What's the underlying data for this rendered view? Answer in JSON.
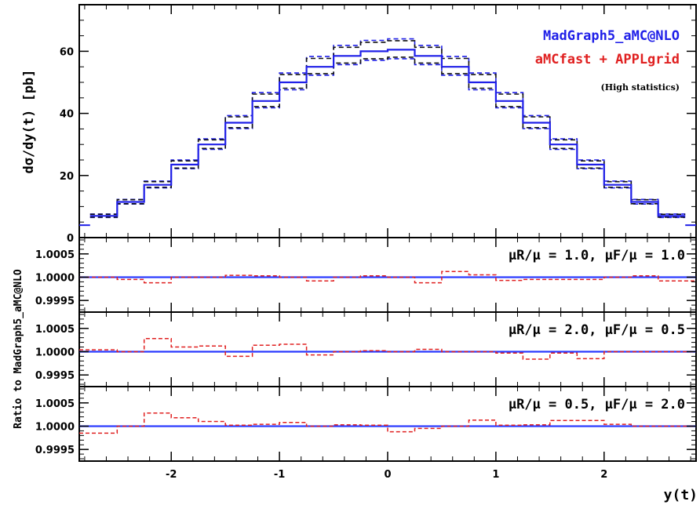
{
  "chart_data": [
    {
      "type": "line",
      "panel": "main",
      "xlabel": "y(t)",
      "ylabel": "dσ/dy(t) [pb]",
      "xlim": [
        -2.85,
        2.85
      ],
      "ylim": [
        0,
        75
      ],
      "x_ticks": [
        "-2",
        "-1",
        "0",
        "1",
        "2"
      ],
      "y_ticks": [
        "0",
        "20",
        "40",
        "60"
      ],
      "bin_edges": [
        -2.75,
        -2.5,
        -2.25,
        -2.0,
        -1.75,
        -1.5,
        -1.25,
        -1.0,
        -0.75,
        -0.5,
        -0.25,
        0.0,
        0.25,
        0.5,
        0.75,
        1.0,
        1.25,
        1.5,
        1.75,
        2.0,
        2.25,
        2.5,
        2.75
      ],
      "series": [
        {
          "name": "MadGraph5_aMC@NLO",
          "color": "#1f1fe8",
          "style": "solid",
          "values": [
            7,
            11.5,
            17,
            23.5,
            30,
            37,
            44,
            50,
            55,
            58.5,
            60,
            60.5,
            58.5,
            55,
            50,
            44,
            37,
            30,
            23.5,
            17,
            11.5,
            7
          ]
        },
        {
          "name": "aMCfast + APPLgrid",
          "color": "#e02020",
          "style": "solid",
          "values": [
            7,
            11.5,
            17,
            23.5,
            30,
            37,
            44,
            50,
            55,
            58.5,
            60,
            60.5,
            58.5,
            55,
            50,
            44,
            37,
            30,
            23.5,
            17,
            11.5,
            7
          ]
        },
        {
          "name": "",
          "color": "#1f1fe8",
          "style": "dashed",
          "values": [
            7.6,
            12.3,
            18.2,
            25,
            31.8,
            39.3,
            46.7,
            53,
            58.3,
            61.9,
            63.5,
            64,
            61.9,
            58.3,
            53,
            46.7,
            39.3,
            31.8,
            25,
            18.2,
            12.3,
            7.6
          ]
        },
        {
          "name": "",
          "color": "#1f1fe8",
          "style": "dashed",
          "values": [
            6.5,
            10.8,
            16,
            22.2,
            28.4,
            35.1,
            41.8,
            47.6,
            52.3,
            55.7,
            57.1,
            57.6,
            55.7,
            52.3,
            47.6,
            41.8,
            35.1,
            28.4,
            22.2,
            16,
            10.8,
            6.5
          ]
        },
        {
          "name": "",
          "color": "#111111",
          "style": "dashed",
          "values": [
            7.5,
            12.2,
            18,
            24.7,
            31.5,
            38.9,
            46.2,
            52.5,
            57.7,
            61.3,
            62.9,
            63.4,
            61.3,
            57.7,
            52.5,
            46.2,
            38.9,
            31.5,
            24.7,
            18,
            12.2,
            7.5
          ]
        },
        {
          "name": "",
          "color": "#111111",
          "style": "dashed",
          "values": [
            6.6,
            10.9,
            16.2,
            22.4,
            28.7,
            35.4,
            42.2,
            48.1,
            52.8,
            56.2,
            57.6,
            58.1,
            56.2,
            52.8,
            48.1,
            42.2,
            35.4,
            28.7,
            22.4,
            16.2,
            10.9,
            6.6
          ]
        }
      ],
      "legend": [
        "MadGraph5_aMC@NLO",
        "aMCfast + APPLgrid"
      ],
      "legend_note": "(High statistics)",
      "legend_position": "top-right"
    },
    {
      "type": "line",
      "panel": "ratio-1",
      "annotation": "μR/μ = 1.0, μF/μ = 1.0",
      "ylabel": "Ratio to MadGraph5_aMC@NLO",
      "ylim": [
        0.99925,
        1.00085
      ],
      "y_ticks": [
        "1.0005",
        "1.0000",
        "0.9995"
      ],
      "bin_edges": [
        -2.75,
        -2.5,
        -2.25,
        -2.0,
        -1.75,
        -1.5,
        -1.25,
        -1.0,
        -0.75,
        -0.5,
        -0.25,
        0.0,
        0.25,
        0.5,
        0.75,
        1.0,
        1.25,
        1.5,
        1.75,
        2.0,
        2.25,
        2.5,
        2.75
      ],
      "reference": 1.0,
      "values": [
        1.0,
        0.99995,
        0.99988,
        1.0,
        1.0,
        1.00004,
        1.00003,
        1.0,
        0.99992,
        1.0,
        1.00003,
        1.0,
        0.99988,
        1.00012,
        1.00005,
        0.99993,
        0.99995,
        0.99995,
        0.99995,
        1.0,
        1.00003,
        0.99992
      ]
    },
    {
      "type": "line",
      "panel": "ratio-2",
      "annotation": "μR/μ = 2.0, μF/μ = 0.5",
      "ylim": [
        0.99925,
        1.00085
      ],
      "y_ticks": [
        "1.0005",
        "1.0000",
        "0.9995"
      ],
      "bin_edges": [
        -2.75,
        -2.5,
        -2.25,
        -2.0,
        -1.75,
        -1.5,
        -1.25,
        -1.0,
        -0.75,
        -0.5,
        -0.25,
        0.0,
        0.25,
        0.5,
        0.75,
        1.0,
        1.25,
        1.5,
        1.75,
        2.0,
        2.25,
        2.5,
        2.75
      ],
      "reference": 1.0,
      "values": [
        1.00004,
        1.0,
        1.00028,
        1.0001,
        1.00012,
        0.9999,
        1.00014,
        1.00016,
        0.99993,
        1.0,
        1.00002,
        1.0,
        1.00005,
        1.0,
        1.0,
        0.99997,
        0.99984,
        0.99997,
        0.99985,
        1.0,
        1.0,
        1.0
      ]
    },
    {
      "type": "line",
      "panel": "ratio-3",
      "annotation": "μR/μ = 0.5, μF/μ = 2.0",
      "ylim": [
        0.99925,
        1.00085
      ],
      "y_ticks": [
        "1.0005",
        "1.0000",
        "0.9995"
      ],
      "bin_edges": [
        -2.75,
        -2.5,
        -2.25,
        -2.0,
        -1.75,
        -1.5,
        -1.25,
        -1.0,
        -0.75,
        -0.5,
        -0.25,
        0.0,
        0.25,
        0.5,
        0.75,
        1.0,
        1.25,
        1.5,
        1.75,
        2.0,
        2.25,
        2.5,
        2.75
      ],
      "reference": 1.0,
      "values": [
        0.99985,
        1.0,
        1.00028,
        1.00018,
        1.0001,
        1.00002,
        1.00004,
        1.00008,
        1.0,
        1.00003,
        1.00002,
        0.99988,
        0.99995,
        1.0,
        1.00013,
        1.00002,
        1.00003,
        1.00012,
        1.00012,
        1.00004,
        1.0,
        1.0
      ]
    }
  ],
  "colors": {
    "nominal": "#1f1fe8",
    "ratio_line": "#2a3aff",
    "ratio_dashed": "#e02020",
    "legend_primary": "#1f1fe8",
    "legend_secondary": "#e02020"
  }
}
